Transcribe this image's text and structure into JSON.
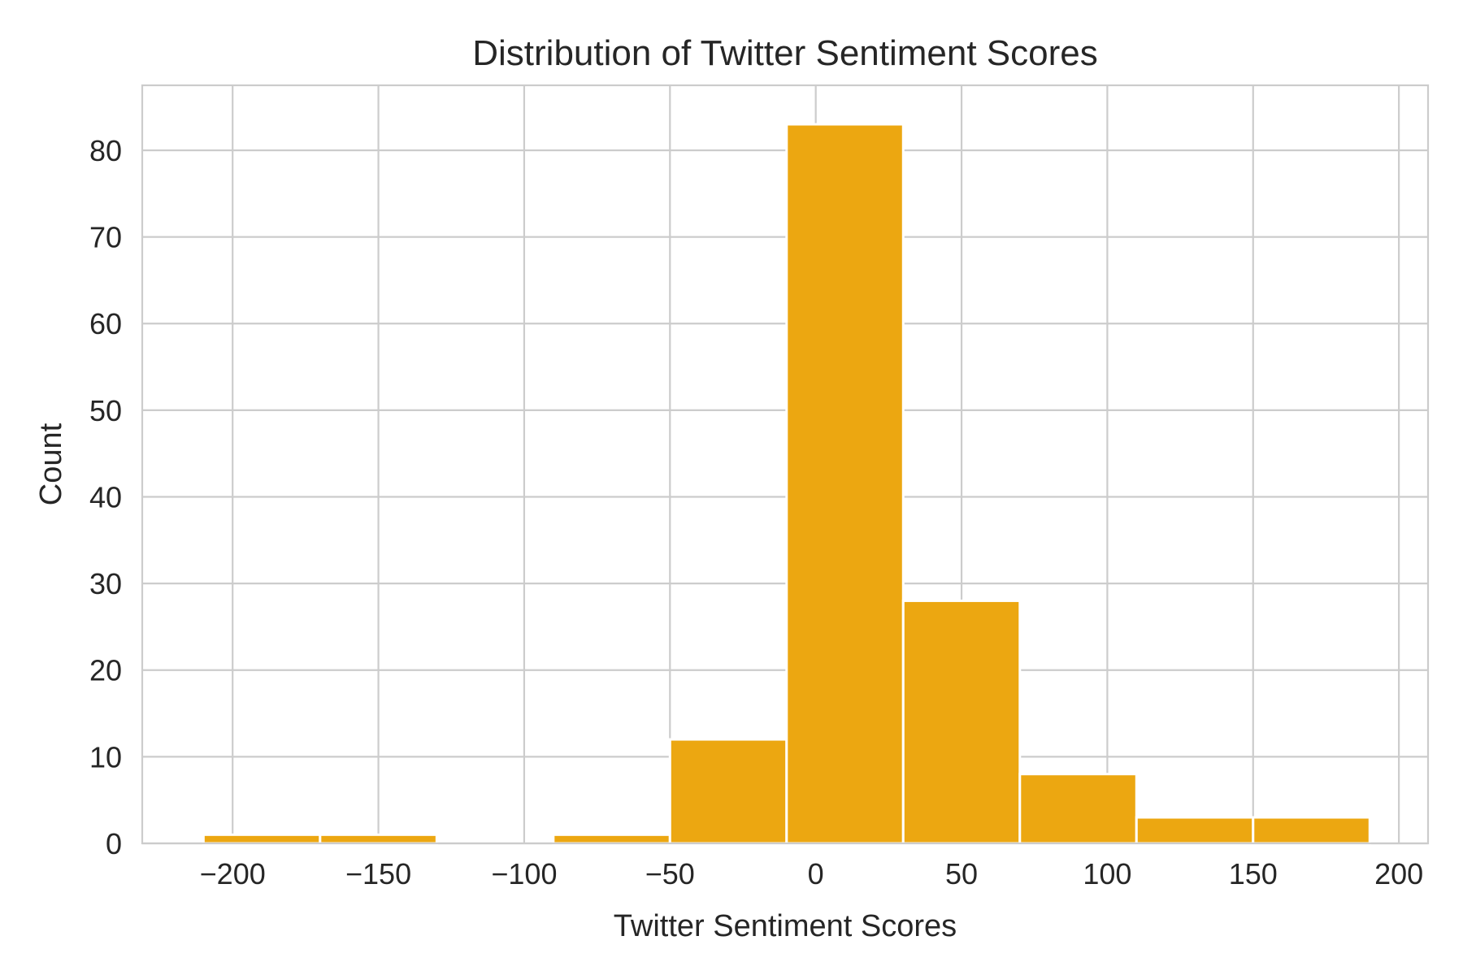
{
  "chart_data": {
    "type": "bar",
    "title": "Distribution of Twitter Sentiment Scores",
    "xlabel": "Twitter Sentiment Scores",
    "ylabel": "Count",
    "xlim": [
      -231,
      210
    ],
    "ylim": [
      0,
      87.5
    ],
    "xticks": [
      -200,
      -150,
      -100,
      -50,
      0,
      50,
      100,
      150,
      200
    ],
    "yticks": [
      0,
      10,
      20,
      30,
      40,
      50,
      60,
      70,
      80
    ],
    "xtick_labels": [
      "−200",
      "−150",
      "−100",
      "−50",
      "0",
      "50",
      "100",
      "150",
      "200"
    ],
    "ytick_labels": [
      "0",
      "10",
      "20",
      "30",
      "40",
      "50",
      "60",
      "70",
      "80"
    ],
    "bin_edges": [
      -210,
      -170,
      -130,
      -90,
      -50,
      -10,
      30,
      70,
      110,
      150,
      190
    ],
    "values": [
      1,
      1,
      0,
      1,
      12,
      83,
      28,
      8,
      3,
      3
    ],
    "bar_color": "#eca711",
    "grid": true,
    "legend": "none"
  }
}
